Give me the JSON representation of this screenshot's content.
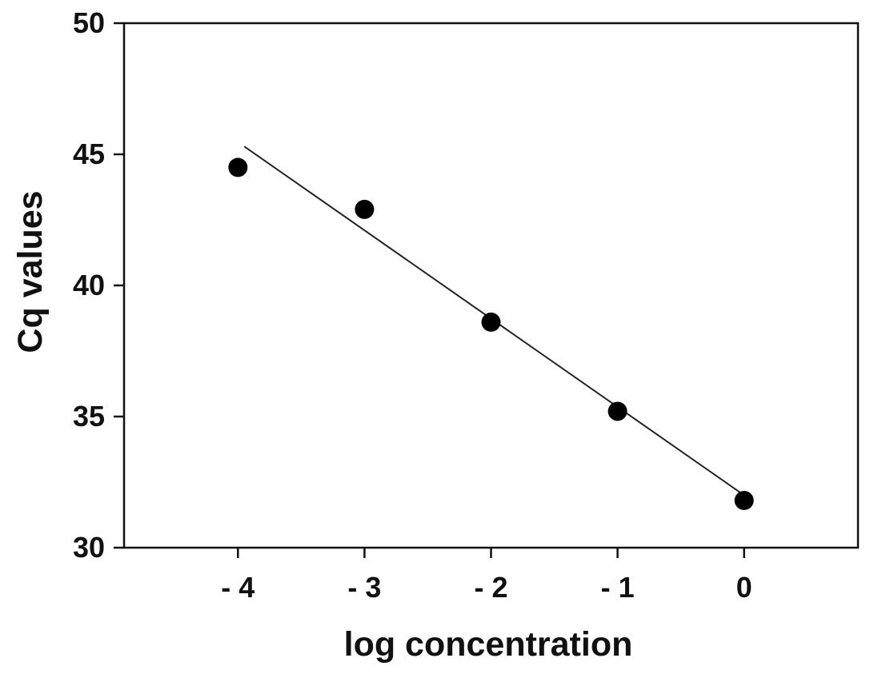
{
  "chart_data": {
    "type": "scatter",
    "title": "",
    "xlabel": "log concentration",
    "ylabel": "Cq values",
    "xlim": [
      -4.9,
      0.9
    ],
    "ylim": [
      30,
      50
    ],
    "x_ticks": [
      -4,
      -3,
      -2,
      -1,
      0
    ],
    "x_tick_labels": [
      "- 4",
      "- 3",
      "- 2",
      "- 1",
      "0"
    ],
    "y_ticks": [
      30,
      35,
      40,
      45,
      50
    ],
    "y_tick_labels": [
      "30",
      "35",
      "40",
      "45",
      "50"
    ],
    "grid": false,
    "legend": "none",
    "series": [
      {
        "x": [
          -4,
          -3,
          -2,
          -1,
          0
        ],
        "y": [
          44.5,
          42.9,
          38.6,
          35.2,
          31.8
        ]
      }
    ],
    "trendline": {
      "x": [
        -3.95,
        0
      ],
      "y": [
        45.3,
        32.0
      ]
    },
    "colors": {
      "points": "#000000",
      "line": "#222222",
      "axes": "#111111"
    }
  }
}
